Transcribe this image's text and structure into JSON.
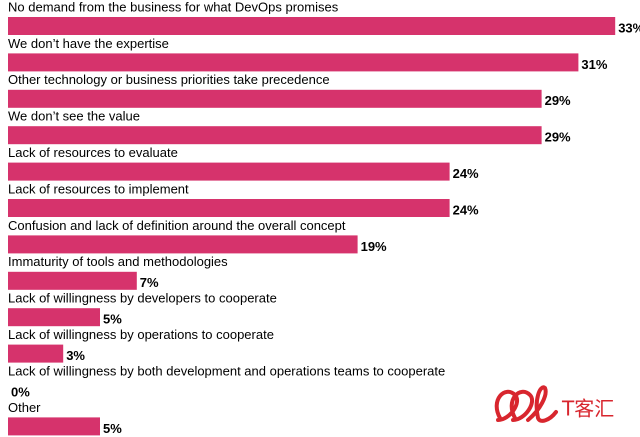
{
  "chart_data": {
    "type": "bar",
    "orientation": "horizontal",
    "categories": [
      "No demand from the business for what DevOps promises",
      "We don’t have the expertise",
      "Other technology or business priorities take precedence",
      "We don’t see the value",
      "Lack of resources to evaluate",
      "Lack of resources to implement",
      "Confusion and lack of definition around the overall concept",
      "Immaturity of tools and methodologies",
      "Lack of willingness by developers to cooperate",
      "Lack of willingness by operations to cooperate",
      "Lack of willingness by both development and operations teams to cooperate",
      "Other"
    ],
    "values": [
      33,
      31,
      29,
      29,
      24,
      24,
      19,
      7,
      5,
      3,
      0,
      5
    ],
    "value_labels": [
      "33%",
      "31%",
      "29%",
      "29%",
      "24%",
      "24%",
      "19%",
      "7%",
      "5%",
      "3%",
      "0%",
      "5%"
    ],
    "color": "#d6336c"
  },
  "watermark": "T客汇"
}
